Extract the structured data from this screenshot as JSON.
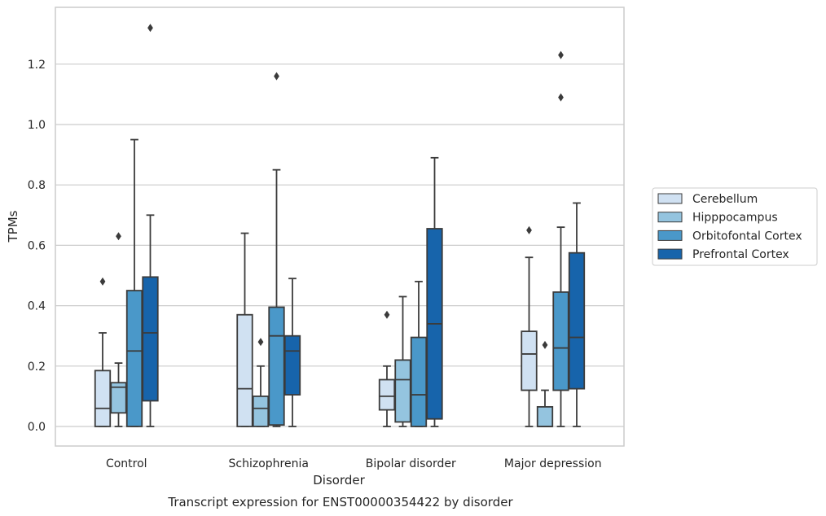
{
  "chart_data": {
    "type": "boxplot",
    "title": "Transcript expression for ENST00000354422 by disorder",
    "xlabel": "Disorder",
    "ylabel": "TPMs",
    "ylim": [
      -0.065,
      1.4
    ],
    "yticks": [
      0.0,
      0.2,
      0.4,
      0.6,
      0.8,
      1.0,
      1.2
    ],
    "ytick_labels": [
      "0.0",
      "0.2",
      "0.4",
      "0.6",
      "0.8",
      "1.0",
      "1.2"
    ],
    "grid": "horizontal",
    "legend_position": "right",
    "categories": [
      "Control",
      "Schizophrenia",
      "Bipolar disorder",
      "Major depression"
    ],
    "series": [
      {
        "name": "Cerebellum",
        "color": "#d0e1f2",
        "boxes": [
          {
            "low": 0.0,
            "q1": 0.0,
            "median": 0.06,
            "q3": 0.185,
            "high": 0.31,
            "outliers": [
              0.48
            ]
          },
          {
            "low": 0.0,
            "q1": 0.0,
            "median": 0.125,
            "q3": 0.37,
            "high": 0.64,
            "outliers": []
          },
          {
            "low": 0.0,
            "q1": 0.055,
            "median": 0.1,
            "q3": 0.155,
            "high": 0.2,
            "outliers": [
              0.37
            ]
          },
          {
            "low": 0.0,
            "q1": 0.12,
            "median": 0.24,
            "q3": 0.315,
            "high": 0.56,
            "outliers": [
              0.65
            ]
          }
        ]
      },
      {
        "name": "Hipppocampus",
        "color": "#94c4df",
        "boxes": [
          {
            "low": 0.0,
            "q1": 0.045,
            "median": 0.13,
            "q3": 0.145,
            "high": 0.21,
            "outliers": [
              0.63
            ]
          },
          {
            "low": 0.0,
            "q1": 0.0,
            "median": 0.06,
            "q3": 0.1,
            "high": 0.2,
            "outliers": [
              0.28
            ]
          },
          {
            "low": 0.0,
            "q1": 0.015,
            "median": 0.155,
            "q3": 0.22,
            "high": 0.43,
            "outliers": []
          },
          {
            "low": 0.0,
            "q1": 0.0,
            "median": 0.0,
            "q3": 0.065,
            "high": 0.12,
            "outliers": [
              0.27
            ]
          }
        ]
      },
      {
        "name": "Orbitofontal Cortex",
        "color": "#4a98c9",
        "boxes": [
          {
            "low": 0.0,
            "q1": 0.0,
            "median": 0.25,
            "q3": 0.45,
            "high": 0.95,
            "outliers": []
          },
          {
            "low": 0.0,
            "q1": 0.005,
            "median": 0.3,
            "q3": 0.395,
            "high": 0.85,
            "outliers": [
              1.16
            ]
          },
          {
            "low": 0.0,
            "q1": 0.0,
            "median": 0.105,
            "q3": 0.295,
            "high": 0.48,
            "outliers": []
          },
          {
            "low": 0.0,
            "q1": 0.12,
            "median": 0.26,
            "q3": 0.445,
            "high": 0.66,
            "outliers": [
              1.09,
              1.23
            ]
          }
        ]
      },
      {
        "name": "Prefrontal Cortex",
        "color": "#1764ab",
        "boxes": [
          {
            "low": 0.0,
            "q1": 0.085,
            "median": 0.31,
            "q3": 0.495,
            "high": 0.7,
            "outliers": [
              1.32
            ]
          },
          {
            "low": 0.0,
            "q1": 0.105,
            "median": 0.25,
            "q3": 0.3,
            "high": 0.49,
            "outliers": []
          },
          {
            "low": 0.0,
            "q1": 0.025,
            "median": 0.34,
            "q3": 0.655,
            "high": 0.89,
            "outliers": []
          },
          {
            "low": 0.0,
            "q1": 0.125,
            "median": 0.295,
            "q3": 0.575,
            "high": 0.74,
            "outliers": []
          }
        ]
      }
    ]
  }
}
